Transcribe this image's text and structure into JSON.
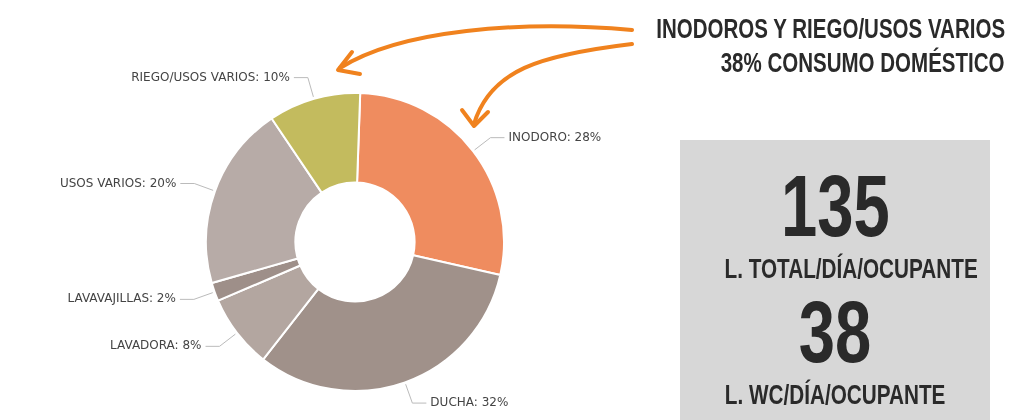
{
  "chart_data": {
    "type": "donut",
    "categories": [
      "INODORO",
      "DUCHA",
      "LAVADORA",
      "LAVAVAJILLAS",
      "USOS VARIOS",
      "RIEGO/USOS VARIOS"
    ],
    "values": [
      28,
      32,
      8,
      2,
      20,
      10
    ],
    "value_labels": [
      "28%",
      "32%",
      "8%",
      "2%",
      "20%",
      "10%"
    ],
    "colors": [
      "#ef8c5f",
      "#a0918a",
      "#b3a6a0",
      "#9e8f89",
      "#b7aba7",
      "#c3bb5e"
    ],
    "legend": false,
    "annotations": [
      "INODOROS Y RIEGO/USOS VARIOS",
      "38% CONSUMO DOMÉSTICO",
      "135",
      "L. TOTAL/DÍA/OCUPANTE",
      "38",
      "L. WC/DÍA/OCUPANTE"
    ]
  }
}
